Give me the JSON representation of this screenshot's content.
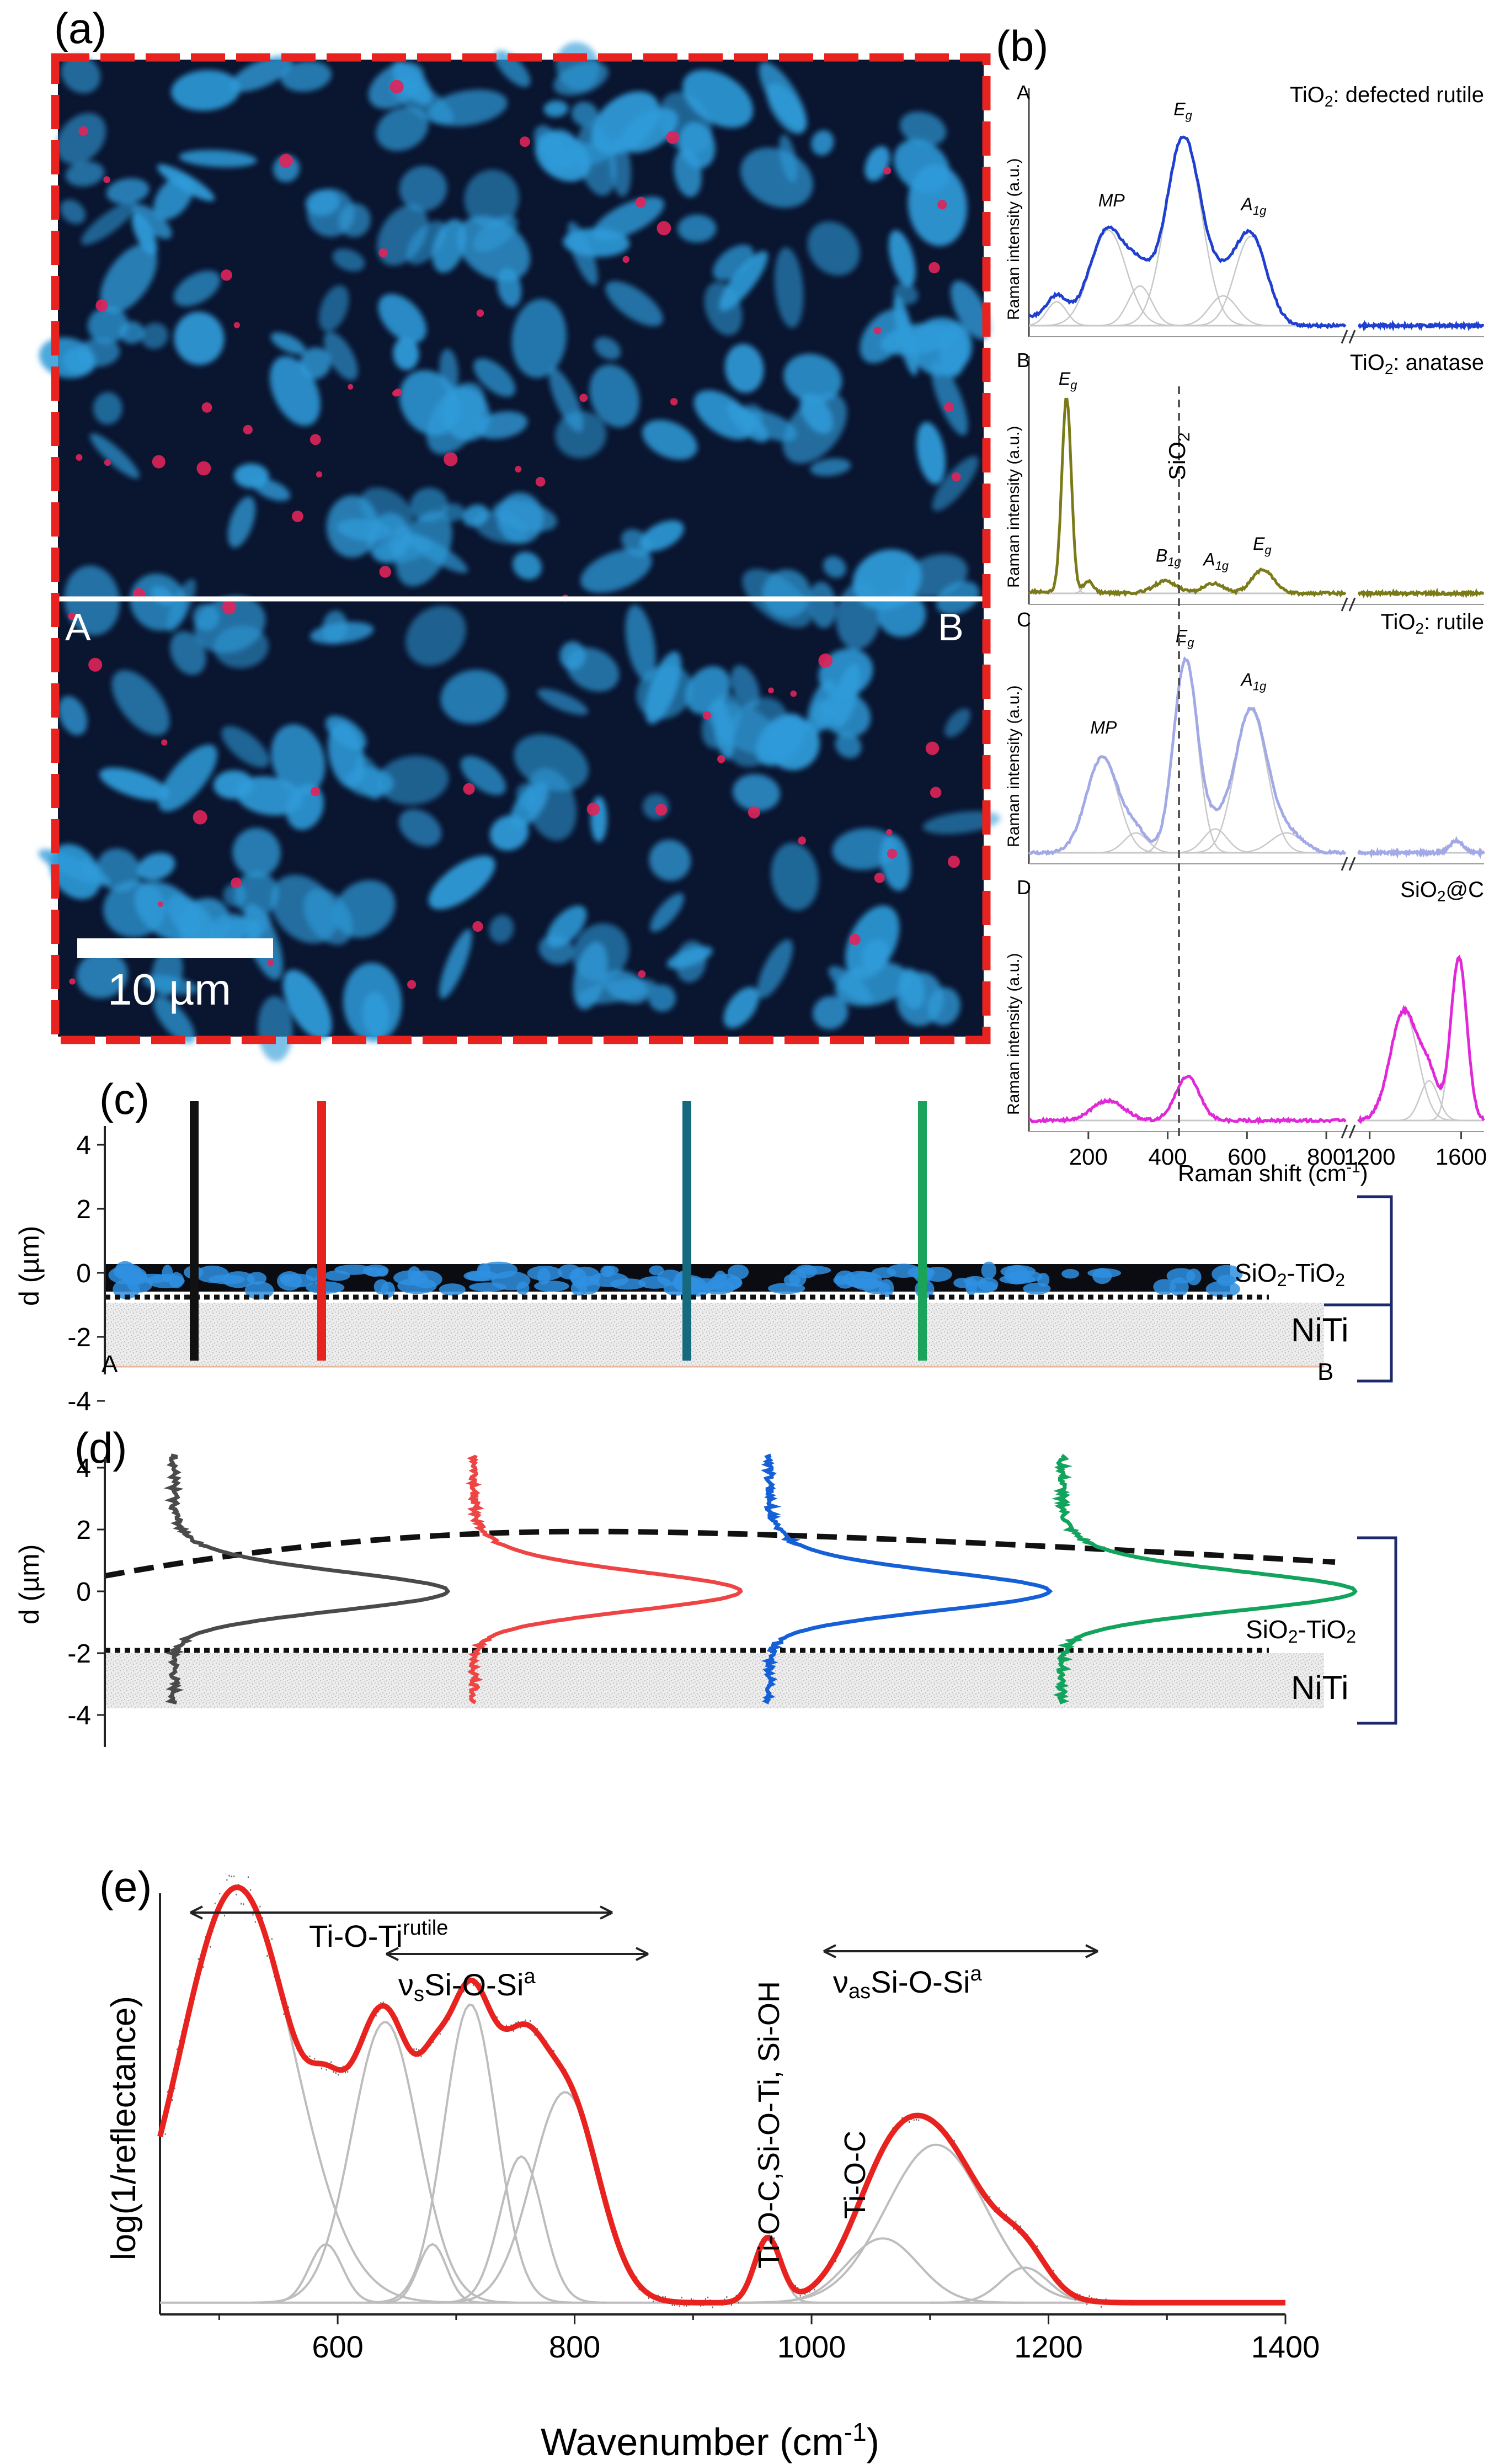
{
  "panel_a": {
    "label": "(a)",
    "point_a": "A",
    "point_b": "B",
    "scale_bar": "10 µm",
    "colors": {
      "frame": "#e8231f",
      "background": "#0a1530",
      "particles": "#2f9bd9",
      "spots": "#e0245a"
    }
  },
  "panel_b": {
    "label": "(b)",
    "xlabel": "Raman shift (cm",
    "xlabel_sup": "-1",
    "xlabel_end": ")",
    "ylabel": "Raman intensity (a.u.)",
    "x_ticks": [
      "200",
      "400",
      "600",
      "800",
      "1200",
      "1600"
    ],
    "sio2_marker": "SiO",
    "sio2_sub": "2",
    "spectra": [
      {
        "id": "A",
        "title_pre": "TiO",
        "title_sub": "2",
        "title_post": ": defected rutile",
        "color": "#1f3fd0",
        "peaks": [
          {
            "pos": 120,
            "h": 0.12,
            "w": 25
          },
          {
            "pos": 250,
            "h": 0.48,
            "w": 45
          },
          {
            "pos": 330,
            "h": 0.2,
            "w": 30
          },
          {
            "pos": 440,
            "h": 0.95,
            "w": 45
          },
          {
            "pos": 540,
            "h": 0.15,
            "w": 35
          },
          {
            "pos": 610,
            "h": 0.45,
            "w": 40
          }
        ],
        "tail": 0.05,
        "annotations": [
          {
            "text": "MP",
            "sub": "",
            "x": 250,
            "y": 0.6
          },
          {
            "text": "E",
            "sub": "g",
            "x": 440,
            "y": 1.06
          },
          {
            "text": "A",
            "sub": "1g",
            "x": 610,
            "y": 0.58
          }
        ]
      },
      {
        "id": "B",
        "title_pre": "TiO",
        "title_sub": "2",
        "title_post": ": anatase",
        "color": "#7a7a18",
        "peaks": [
          {
            "pos": 145,
            "h": 0.98,
            "w": 12
          },
          {
            "pos": 200,
            "h": 0.06,
            "w": 12
          },
          {
            "pos": 395,
            "h": 0.06,
            "w": 30
          },
          {
            "pos": 515,
            "h": 0.05,
            "w": 25
          },
          {
            "pos": 640,
            "h": 0.12,
            "w": 28
          }
        ],
        "tail": 0.01,
        "annotations": [
          {
            "text": "E",
            "sub": "g",
            "x": 150,
            "y": 1.05
          },
          {
            "text": "B",
            "sub": "1g",
            "x": 395,
            "y": 0.16
          },
          {
            "text": "A",
            "sub": "1g",
            "x": 515,
            "y": 0.14
          },
          {
            "text": "E",
            "sub": "g",
            "x": 640,
            "y": 0.22
          }
        ]
      },
      {
        "id": "C",
        "title_pre": "TiO",
        "title_sub": "2",
        "title_post": ": rutile",
        "color": "#a2a9e6",
        "peaks": [
          {
            "pos": 235,
            "h": 0.48,
            "w": 40
          },
          {
            "pos": 320,
            "h": 0.1,
            "w": 30
          },
          {
            "pos": 445,
            "h": 0.97,
            "w": 30
          },
          {
            "pos": 520,
            "h": 0.12,
            "w": 30
          },
          {
            "pos": 610,
            "h": 0.72,
            "w": 40
          },
          {
            "pos": 700,
            "h": 0.1,
            "w": 40
          },
          {
            "pos": 1580,
            "h": 0.06,
            "w": 30
          }
        ],
        "tail": 0.0,
        "annotations": [
          {
            "text": "MP",
            "sub": "",
            "x": 230,
            "y": 0.6
          },
          {
            "text": "E",
            "sub": "g",
            "x": 445,
            "y": 1.06
          },
          {
            "text": "A",
            "sub": "1g",
            "x": 610,
            "y": 0.84
          }
        ]
      },
      {
        "id": "D",
        "title_pre": "SiO",
        "title_sub": "2",
        "title_post": "@C",
        "color": "#e028d8",
        "peaks": [
          {
            "pos": 250,
            "h": 0.1,
            "w": 40
          },
          {
            "pos": 450,
            "h": 0.22,
            "w": 30
          },
          {
            "pos": 1350,
            "h": 0.55,
            "w": 60
          },
          {
            "pos": 1460,
            "h": 0.2,
            "w": 40
          },
          {
            "pos": 1590,
            "h": 0.82,
            "w": 35
          }
        ],
        "tail": 0.0,
        "annotations": []
      }
    ]
  },
  "panel_c": {
    "label": "(c)",
    "ylabel": "d (µm)",
    "y_ticks": [
      "4",
      "2",
      "0",
      "-2",
      "-4"
    ],
    "layer_top": "SiO",
    "layer_top_sub": "2",
    "layer_top_end": "-TiO",
    "layer_top_sub2": "2",
    "layer_bottom": "NiTi",
    "point_a": "A",
    "point_b": "B",
    "line_colors": [
      "#111111",
      "#e8231f",
      "#166a80",
      "#1aa35a"
    ]
  },
  "panel_d": {
    "label": "(d)",
    "ylabel": "d (µm)",
    "y_ticks": [
      "4",
      "2",
      "0",
      "-2",
      "-4"
    ],
    "layer_top": "SiO",
    "layer_top_sub": "2",
    "layer_top_end": "-TiO",
    "layer_top_sub2": "2",
    "layer_bottom": "NiTi",
    "profile_colors": [
      "#4a4a4a",
      "#ee4444",
      "#1560d6",
      "#12a35c"
    ]
  },
  "panel_e": {
    "label": "(e)",
    "xlabel": "Wavenumber (cm",
    "xlabel_sup": "-1",
    "xlabel_end": ")",
    "ylabel": "log(1/reflectance)",
    "x_ticks": [
      "600",
      "800",
      "1000",
      "1200",
      "1400"
    ],
    "ann_tio": "Ti-O-Ti",
    "ann_tio_sup": "rutile",
    "ann_nus": "ν",
    "ann_nus_sub": "s",
    "ann_nus_rest": "Si-O-Si",
    "ann_nus_sup": "a",
    "ann_nuas": "ν",
    "ann_nuas_sub": "as",
    "ann_nuas_rest": "Si-O-Si",
    "ann_nuas_sup": "a",
    "ann_vert1": "Ti-O-C,Si-O-Ti, Si-OH",
    "ann_vert2": "Ti-O-C",
    "fit_color": "#e8231f",
    "component_color": "#bdbdbd",
    "components": [
      {
        "center": 515,
        "amp": 0.71,
        "sigma": 48
      },
      {
        "center": 590,
        "amp": 0.1,
        "sigma": 14
      },
      {
        "center": 640,
        "amp": 0.48,
        "sigma": 28
      },
      {
        "center": 680,
        "amp": 0.1,
        "sigma": 12
      },
      {
        "center": 712,
        "amp": 0.51,
        "sigma": 22
      },
      {
        "center": 755,
        "amp": 0.25,
        "sigma": 18
      },
      {
        "center": 792,
        "amp": 0.36,
        "sigma": 28
      },
      {
        "center": 963,
        "amp": 0.11,
        "sigma": 11
      },
      {
        "center": 1060,
        "amp": 0.11,
        "sigma": 30
      },
      {
        "center": 1105,
        "amp": 0.27,
        "sigma": 42
      },
      {
        "center": 1180,
        "amp": 0.06,
        "sigma": 20
      }
    ]
  }
}
